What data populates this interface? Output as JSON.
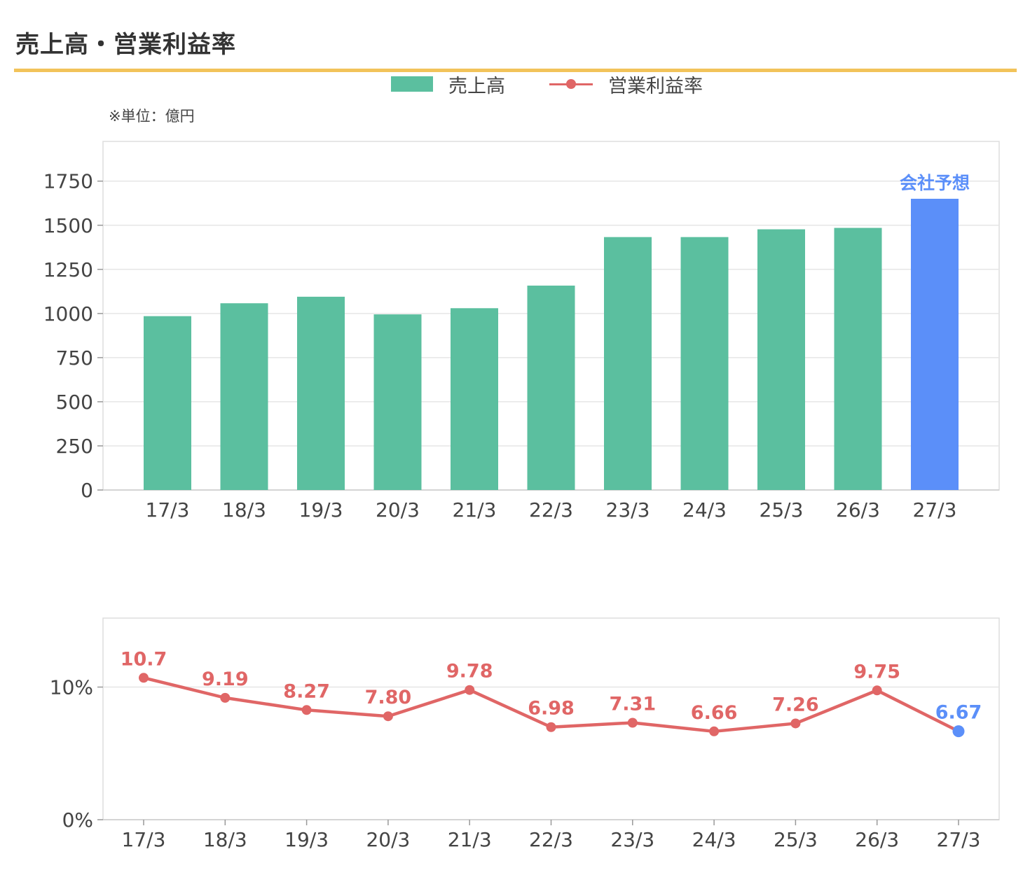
{
  "header": {
    "title": "売上高・営業利益率"
  },
  "colors": {
    "accent_rule": "#f2c35a",
    "sales_bar": "#5bbf9f",
    "forecast": "#5b8ff9",
    "margin_line": "#e06666",
    "grid": "#e6e6e6",
    "frame": "#dddddd"
  },
  "legend": {
    "sales_label": "売上高",
    "margin_label": "営業利益率",
    "placement": "top-center"
  },
  "unit_note": "※単位：億円",
  "chart_data": [
    {
      "type": "bar",
      "name": "sales",
      "categories": [
        "17/3",
        "18/3",
        "19/3",
        "20/3",
        "21/3",
        "22/3",
        "23/3",
        "24/3",
        "25/3",
        "26/3",
        "27/3"
      ],
      "series": [
        {
          "name": "売上高",
          "values": [
            985,
            1058,
            1095,
            995,
            1030,
            1158,
            1433,
            1433,
            1477,
            1485,
            1650
          ]
        }
      ],
      "ylim": [
        0,
        1975
      ],
      "yticks": [
        0,
        250,
        500,
        750,
        1000,
        1250,
        1500,
        1750
      ],
      "grid": true,
      "forecast_index": 10,
      "forecast_label": "会社予想"
    },
    {
      "type": "line",
      "name": "operating-margin",
      "categories": [
        "17/3",
        "18/3",
        "19/3",
        "20/3",
        "21/3",
        "22/3",
        "23/3",
        "24/3",
        "25/3",
        "26/3",
        "27/3"
      ],
      "series": [
        {
          "name": "営業利益率",
          "values": [
            10.7,
            9.19,
            8.27,
            7.8,
            9.78,
            6.98,
            7.31,
            6.66,
            7.26,
            9.75,
            6.67
          ]
        }
      ],
      "data_labels": [
        "10.7",
        "9.19",
        "8.27",
        "7.80",
        "9.78",
        "6.98",
        "7.31",
        "6.66",
        "7.26",
        "9.75",
        "6.67"
      ],
      "ylim": [
        0,
        15.2
      ],
      "yticks": [
        0,
        10
      ],
      "ytick_labels": [
        "0%",
        "10%"
      ],
      "grid": true,
      "forecast_index": 10
    }
  ]
}
